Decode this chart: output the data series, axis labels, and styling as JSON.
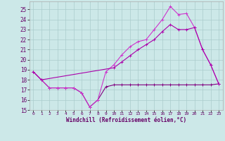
{
  "background_color": "#cce8e8",
  "grid_color": "#aacccc",
  "line_color_dark": "#800080",
  "line_color_mid": "#cc33cc",
  "line_color_bright": "#aa00aa",
  "xlabel": "Windchill (Refroidissement éolien,°C)",
  "xlim": [
    -0.5,
    23.5
  ],
  "ylim": [
    15,
    25.8
  ],
  "yticks": [
    15,
    16,
    17,
    18,
    19,
    20,
    21,
    22,
    23,
    24,
    25
  ],
  "xticks": [
    0,
    1,
    2,
    3,
    4,
    5,
    6,
    7,
    8,
    9,
    10,
    11,
    12,
    13,
    14,
    15,
    16,
    17,
    18,
    19,
    20,
    21,
    22,
    23
  ],
  "line1_x": [
    0,
    1,
    2,
    3,
    4,
    5,
    6,
    7,
    8,
    9,
    10,
    11,
    12,
    13,
    14,
    15,
    16,
    17,
    18,
    19,
    20,
    21,
    22,
    23
  ],
  "line1_y": [
    18.8,
    18.0,
    17.2,
    17.2,
    17.2,
    17.2,
    16.7,
    15.3,
    16.0,
    17.3,
    17.5,
    17.5,
    17.5,
    17.5,
    17.5,
    17.5,
    17.5,
    17.5,
    17.5,
    17.5,
    17.5,
    17.5,
    17.5,
    17.6
  ],
  "line2_x": [
    0,
    1,
    2,
    3,
    4,
    5,
    6,
    7,
    8,
    9,
    10,
    11,
    12,
    13,
    14,
    15,
    16,
    17,
    18,
    19,
    20,
    21,
    22,
    23
  ],
  "line2_y": [
    18.8,
    18.0,
    17.2,
    17.2,
    17.2,
    17.2,
    16.7,
    15.3,
    16.0,
    18.8,
    19.5,
    20.5,
    21.3,
    21.8,
    22.0,
    23.0,
    24.0,
    25.3,
    24.5,
    24.6,
    23.2,
    21.0,
    19.5,
    17.6
  ],
  "line3_x": [
    0,
    1,
    10,
    11,
    12,
    13,
    14,
    15,
    16,
    17,
    18,
    19,
    20,
    21,
    22,
    23
  ],
  "line3_y": [
    18.8,
    18.0,
    19.2,
    19.8,
    20.4,
    21.0,
    21.5,
    22.0,
    22.8,
    23.5,
    23.0,
    23.0,
    23.2,
    21.0,
    19.5,
    17.6
  ],
  "marker": "+",
  "markersize": 3.5,
  "linewidth": 0.8
}
